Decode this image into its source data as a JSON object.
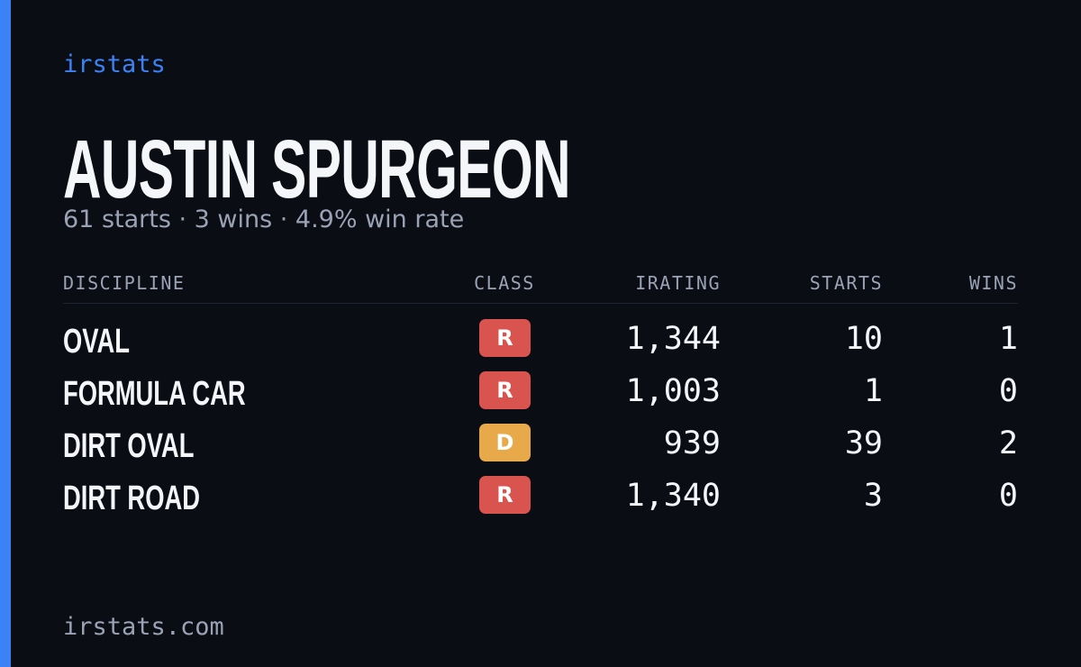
{
  "brand": "irstats",
  "title": "AUSTIN SPURGEON",
  "subtitle": "61 starts · 3 wins · 4.9% win rate",
  "table": {
    "headers": [
      "DISCIPLINE",
      "CLASS",
      "IRATING",
      "STARTS",
      "WINS"
    ],
    "rows": [
      {
        "discipline": "OVAL",
        "class": "R",
        "class_color": "#d9534f",
        "irating": "1,344",
        "starts": "10",
        "wins": "1"
      },
      {
        "discipline": "FORMULA CAR",
        "class": "R",
        "class_color": "#d9534f",
        "irating": "1,003",
        "starts": "1",
        "wins": "0"
      },
      {
        "discipline": "DIRT OVAL",
        "class": "D",
        "class_color": "#e8a94a",
        "irating": "939",
        "starts": "39",
        "wins": "2"
      },
      {
        "discipline": "DIRT ROAD",
        "class": "R",
        "class_color": "#d9534f",
        "irating": "1,340",
        "starts": "3",
        "wins": "0"
      }
    ]
  },
  "footer": "irstats.com"
}
